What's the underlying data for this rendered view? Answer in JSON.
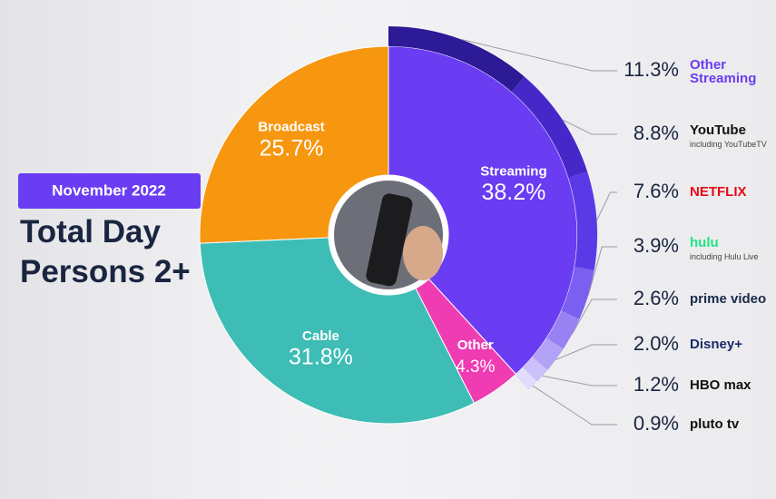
{
  "chart_data": {
    "type": "donut",
    "subtitle": "November 2022",
    "title_lines": [
      "Total Day",
      "Persons 2+"
    ],
    "categories": [
      "Streaming",
      "Other",
      "Cable",
      "Broadcast"
    ],
    "values": [
      38.2,
      4.3,
      31.8,
      25.7
    ],
    "value_labels": [
      "38.2%",
      "4.3%",
      "31.8%",
      "25.7%"
    ],
    "colors": [
      "#6a3cf2",
      "#f03cb2",
      "#3dbdb5",
      "#f7960f"
    ],
    "breakdown": {
      "categories": [
        "Other Streaming",
        "YouTube",
        "NETFLIX",
        "hulu",
        "prime video",
        "Disney+",
        "HBO max",
        "pluto tv"
      ],
      "notes": [
        null,
        "including YouTubeTV",
        null,
        "including Hulu Live",
        null,
        null,
        null,
        null
      ],
      "values": [
        11.3,
        8.8,
        7.6,
        3.9,
        2.6,
        2.0,
        1.2,
        0.9
      ],
      "value_labels": [
        "11.3%",
        "8.8%",
        "7.6%",
        "3.9%",
        "2.6%",
        "2.0%",
        "1.2%",
        "0.9%"
      ],
      "colors": [
        "#2c1a96",
        "#4628c9",
        "#5a3ae6",
        "#7a5ff0",
        "#9882f3",
        "#b2a2f6",
        "#cbc0f9",
        "#e2dbfc"
      ],
      "label_colors": [
        "#6a3cf2",
        "#111111",
        "#e50914",
        "#1ce783",
        "#1a2b4a",
        "#1a2b6a",
        "#111111",
        "#111111"
      ]
    }
  }
}
